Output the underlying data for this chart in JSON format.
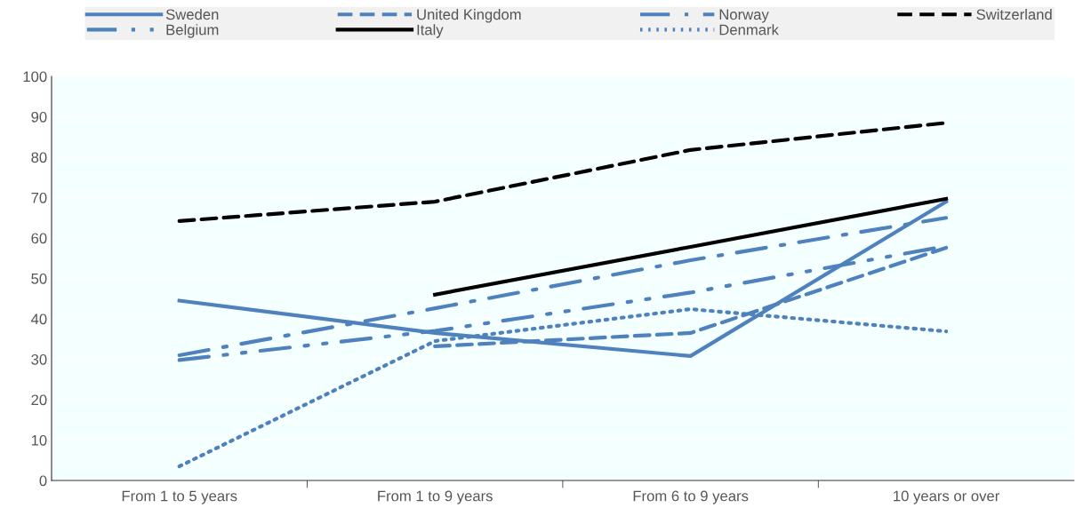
{
  "chart_data": {
    "type": "line",
    "categories": [
      "From 1 to 5 years",
      "From 1 to 9 years",
      "From 6 to 9 years",
      "10 years or over"
    ],
    "series": [
      {
        "name": "Sweden",
        "color": "#4f81bd",
        "line_style": "solid",
        "values": [
          44.5,
          36.5,
          30.8,
          69
        ]
      },
      {
        "name": "United Kingdom",
        "color": "#4f81bd",
        "line_style": "dashed",
        "values": [
          null,
          33.2,
          36.5,
          57.6
        ]
      },
      {
        "name": "Norway",
        "color": "#4f81bd",
        "line_style": "dashdot",
        "values": [
          31,
          42.6,
          54.5,
          65
        ]
      },
      {
        "name": "Switzerland",
        "color": "#000000",
        "line_style": "dashed",
        "values": [
          64.2,
          69,
          81.8,
          88.5
        ]
      },
      {
        "name": "Belgium",
        "color": "#4f81bd",
        "line_style": "dashdotdot",
        "values": [
          29.8,
          37,
          46.5,
          58
        ]
      },
      {
        "name": "Italy",
        "color": "#000000",
        "line_style": "solid",
        "values": [
          null,
          46,
          57.8,
          69.7
        ]
      },
      {
        "name": "Denmark",
        "color": "#4f81bd",
        "line_style": "dotted",
        "values": [
          3.5,
          34.5,
          42.4,
          36.9
        ]
      }
    ],
    "ylim": [
      0,
      100
    ],
    "yticks": [
      0,
      10,
      20,
      30,
      40,
      50,
      60,
      70,
      80,
      90,
      100
    ],
    "grid": "y",
    "legend": "top",
    "marker": "none"
  }
}
